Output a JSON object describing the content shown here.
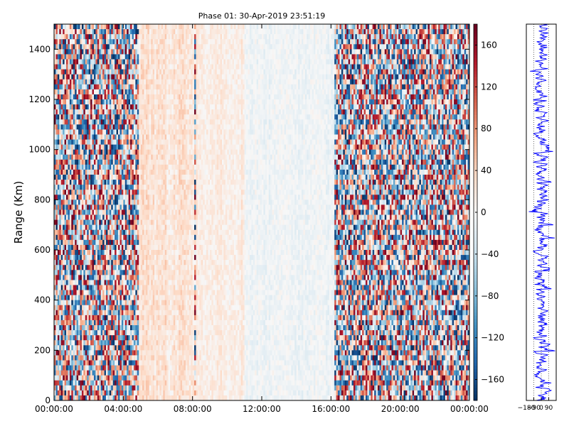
{
  "chart_data": [
    {
      "type": "heatmap",
      "title": "Phase 01: 30-Apr-2019 23:51:19",
      "xlabel": "",
      "ylabel": "Range (Km)",
      "x_tick_labels": [
        "00:00:00",
        "04:00:00",
        "08:00:00",
        "12:00:00",
        "16:00:00",
        "20:00:00",
        "00:00:00"
      ],
      "x_tick_hours": [
        0,
        4,
        8,
        12,
        16,
        20,
        24
      ],
      "xlim_hours": [
        0,
        24
      ],
      "y_ticks": [
        0,
        200,
        400,
        600,
        800,
        1000,
        1200,
        1400
      ],
      "ylim": [
        0,
        1500
      ],
      "colorbar": {
        "colormap": "RdBu_r",
        "range": [
          -180,
          180
        ],
        "ticks": [
          160,
          120,
          80,
          40,
          0,
          -40,
          -80,
          -120,
          -160
        ],
        "tick_labels": [
          "160",
          "120",
          "80",
          "40",
          "0",
          "−40",
          "−80",
          "−120",
          "−160"
        ]
      },
      "bands": [
        {
          "start_hour": 0,
          "end_hour": 4.9,
          "amplitude_deg": 180,
          "mean_deg": 0
        },
        {
          "start_hour": 4.9,
          "end_hour": 8.1,
          "amplitude_deg": 40,
          "mean_deg": 25
        },
        {
          "start_hour": 8.1,
          "end_hour": 8.25,
          "amplitude_deg": 180,
          "mean_deg": 170
        },
        {
          "start_hour": 8.25,
          "end_hour": 11,
          "amplitude_deg": 30,
          "mean_deg": 15
        },
        {
          "start_hour": 11,
          "end_hour": 16.2,
          "amplitude_deg": 25,
          "mean_deg": -8
        },
        {
          "start_hour": 16.2,
          "end_hour": 24,
          "amplitude_deg": 180,
          "mean_deg": 0
        }
      ]
    },
    {
      "type": "line",
      "xlabel": "",
      "ylabel": "",
      "xlim": [
        -180,
        180
      ],
      "ylim": [
        0,
        1500
      ],
      "x_tick_labels": [
        "−180",
        "−90",
        "0",
        "90"
      ],
      "x_ticks": [
        -180,
        -90,
        0,
        90
      ],
      "series": [
        {
          "color": "#0000ff"
        }
      ]
    }
  ]
}
